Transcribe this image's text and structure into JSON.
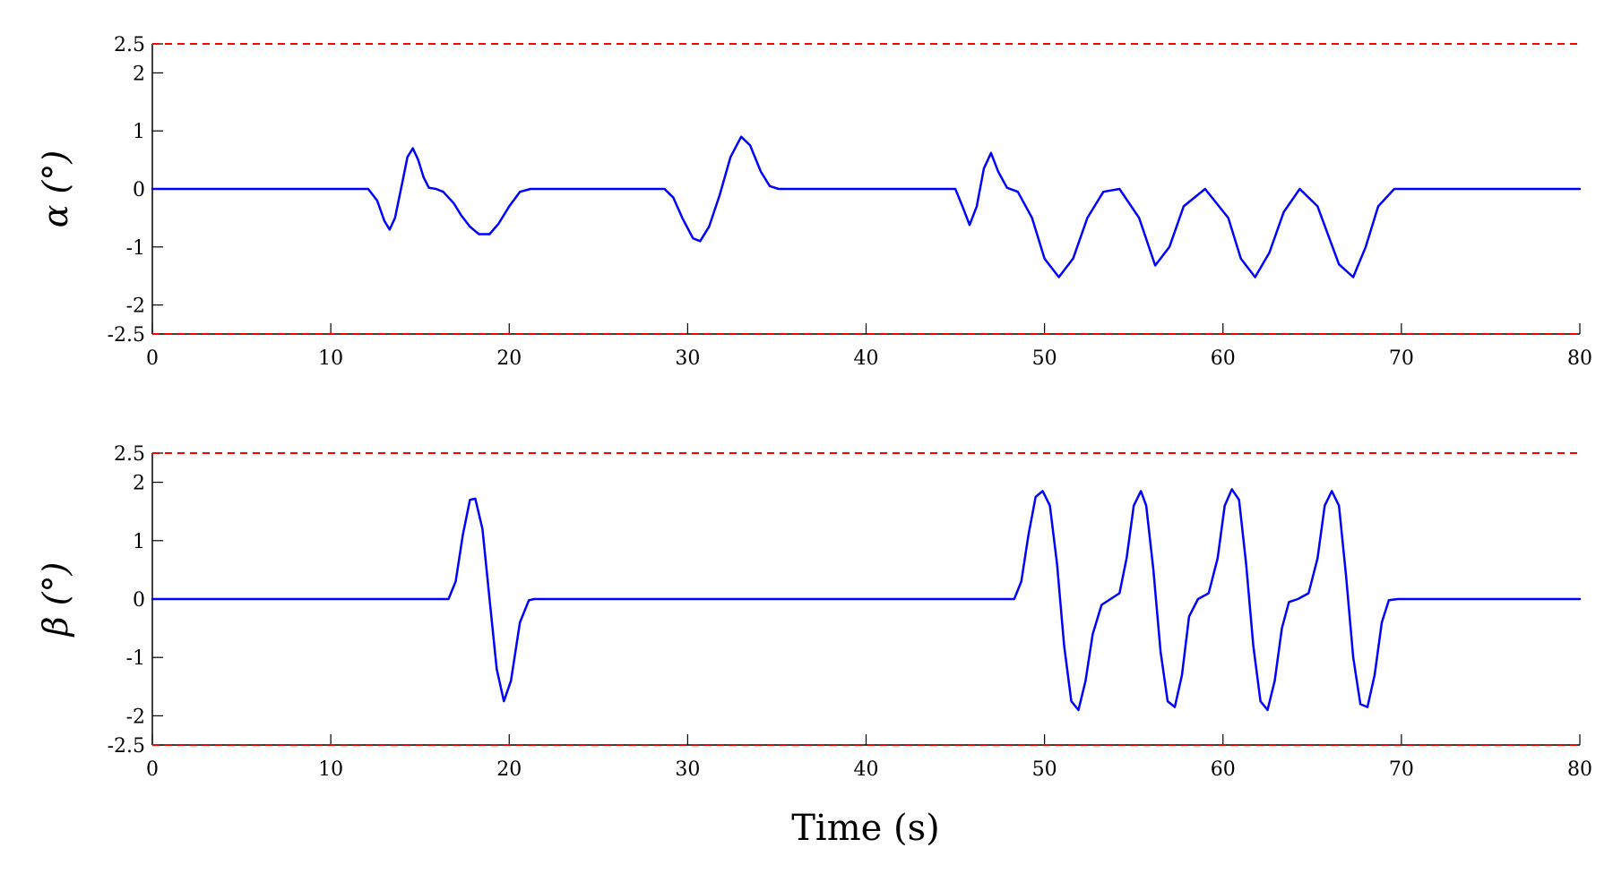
{
  "colors": {
    "signal": "#0000ff",
    "limit": "#ff0000",
    "axis": "#000000"
  },
  "chart_data": [
    {
      "type": "line",
      "ylabel": "α (°)",
      "xlabel": "",
      "xlim": [
        0,
        80
      ],
      "ylim": [
        -2.5,
        2.5
      ],
      "xticks": [
        "0",
        "10",
        "20",
        "30",
        "40",
        "50",
        "60",
        "70",
        "80"
      ],
      "yticks": [
        "2.5",
        "2",
        "1",
        "0",
        "-1",
        "-2",
        "-2.5"
      ],
      "limits": [
        2.5,
        -2.5
      ],
      "series": [
        {
          "x": [
            0,
            12.1,
            12.6,
            13.0,
            13.3,
            13.6,
            14.0,
            14.3,
            14.6,
            14.9,
            15.2,
            15.5,
            15.9,
            16.3,
            16.9,
            17.3,
            17.8,
            18.3,
            18.9,
            19.4,
            20.0,
            20.6,
            21.2,
            28.7,
            29.2,
            29.7,
            30.3,
            30.7,
            31.2,
            31.8,
            32.4,
            33.0,
            33.5,
            34.1,
            34.6,
            35.1,
            45.0,
            45.4,
            45.8,
            46.2,
            46.6,
            47.0,
            47.4,
            47.9,
            48.5,
            49.3,
            50.0,
            50.8,
            51.6,
            52.4,
            53.3,
            54.2,
            55.3,
            56.2,
            57.0,
            57.8,
            59.0,
            60.3,
            61.0,
            61.8,
            62.6,
            63.4,
            64.3,
            65.3,
            66.5,
            67.3,
            68.0,
            68.7,
            69.6,
            80
          ],
          "y": [
            0,
            0,
            -0.2,
            -0.55,
            -0.7,
            -0.5,
            0.1,
            0.55,
            0.7,
            0.5,
            0.2,
            0.02,
            0,
            -0.05,
            -0.25,
            -0.45,
            -0.65,
            -0.78,
            -0.78,
            -0.6,
            -0.3,
            -0.05,
            0,
            0,
            -0.15,
            -0.5,
            -0.85,
            -0.9,
            -0.65,
            -0.1,
            0.55,
            0.9,
            0.75,
            0.3,
            0.05,
            0,
            0,
            -0.3,
            -0.62,
            -0.3,
            0.35,
            0.62,
            0.3,
            0.02,
            -0.05,
            -0.5,
            -1.2,
            -1.52,
            -1.2,
            -0.5,
            -0.05,
            0,
            -0.5,
            -1.32,
            -1.0,
            -0.3,
            0,
            -0.5,
            -1.2,
            -1.52,
            -1.1,
            -0.4,
            0,
            -0.3,
            -1.3,
            -1.52,
            -1.0,
            -0.3,
            0,
            0
          ]
        }
      ]
    },
    {
      "type": "line",
      "ylabel": "β (°)",
      "xlabel": "Time (s)",
      "xlim": [
        0,
        80
      ],
      "ylim": [
        -2.5,
        2.5
      ],
      "xticks": [
        "0",
        "10",
        "20",
        "30",
        "40",
        "50",
        "60",
        "70",
        "80"
      ],
      "yticks": [
        "2.5",
        "2",
        "1",
        "0",
        "-1",
        "-2",
        "-2.5"
      ],
      "limits": [
        2.5,
        -2.5
      ],
      "series": [
        {
          "x": [
            0,
            16.6,
            17.0,
            17.4,
            17.8,
            18.1,
            18.5,
            18.9,
            19.3,
            19.7,
            20.1,
            20.6,
            21.1,
            21.4,
            48.3,
            48.7,
            49.1,
            49.5,
            49.9,
            50.3,
            50.7,
            51.1,
            51.5,
            51.9,
            52.3,
            52.7,
            53.2,
            53.7,
            54.2,
            54.6,
            55.0,
            55.4,
            55.7,
            56.1,
            56.5,
            56.9,
            57.3,
            57.7,
            58.1,
            58.6,
            59.2,
            59.7,
            60.1,
            60.5,
            60.9,
            61.3,
            61.7,
            62.1,
            62.5,
            62.9,
            63.3,
            63.7,
            64.2,
            64.8,
            65.3,
            65.7,
            66.1,
            66.5,
            66.9,
            67.3,
            67.7,
            68.1,
            68.5,
            68.9,
            69.3,
            69.8,
            80
          ],
          "y": [
            0,
            0,
            0.3,
            1.1,
            1.7,
            1.72,
            1.2,
            0.0,
            -1.2,
            -1.75,
            -1.4,
            -0.4,
            -0.02,
            0,
            0,
            0.3,
            1.1,
            1.75,
            1.85,
            1.6,
            0.6,
            -0.8,
            -1.75,
            -1.9,
            -1.4,
            -0.6,
            -0.1,
            0,
            0.1,
            0.7,
            1.6,
            1.85,
            1.6,
            0.5,
            -0.9,
            -1.75,
            -1.85,
            -1.3,
            -0.3,
            0,
            0.1,
            0.7,
            1.6,
            1.88,
            1.7,
            0.6,
            -0.8,
            -1.75,
            -1.9,
            -1.4,
            -0.5,
            -0.05,
            0,
            0.1,
            0.7,
            1.6,
            1.85,
            1.6,
            0.4,
            -1.0,
            -1.8,
            -1.85,
            -1.3,
            -0.4,
            -0.02,
            0,
            0
          ]
        }
      ]
    }
  ]
}
